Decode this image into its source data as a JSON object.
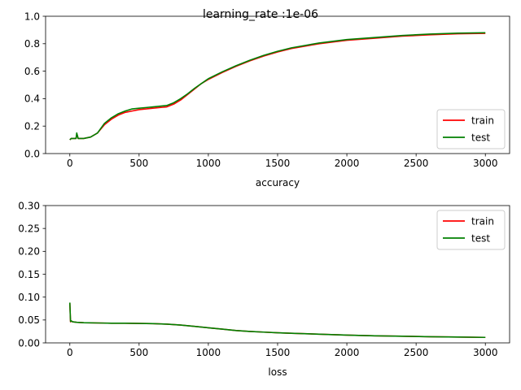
{
  "figure": {
    "suptitle": "learning_rate :1e-06"
  },
  "chart_data": [
    {
      "type": "line",
      "title": "",
      "xlabel": "accuracy",
      "ylabel": "",
      "xlim": [
        -175,
        3175
      ],
      "ylim": [
        0.0,
        1.0
      ],
      "xticks": [
        0,
        500,
        1000,
        1500,
        2000,
        2500,
        3000
      ],
      "yticks": [
        0.0,
        0.2,
        0.4,
        0.6,
        0.8,
        1.0
      ],
      "ytick_labels": [
        "0.0",
        "0.2",
        "0.4",
        "0.6",
        "0.8",
        "1.0"
      ],
      "grid": false,
      "legend_placement": "lower-right",
      "series": [
        {
          "name": "train",
          "color": "#ff0000",
          "x": [
            0,
            10,
            30,
            45,
            50,
            55,
            60,
            80,
            100,
            150,
            200,
            250,
            300,
            350,
            400,
            450,
            500,
            550,
            600,
            650,
            700,
            750,
            800,
            850,
            900,
            950,
            1000,
            1100,
            1200,
            1300,
            1400,
            1500,
            1600,
            1800,
            2000,
            2200,
            2400,
            2600,
            2800,
            3000
          ],
          "y": [
            0.1,
            0.11,
            0.11,
            0.11,
            0.14,
            0.13,
            0.11,
            0.11,
            0.11,
            0.12,
            0.15,
            0.21,
            0.25,
            0.28,
            0.3,
            0.31,
            0.32,
            0.325,
            0.33,
            0.335,
            0.34,
            0.36,
            0.39,
            0.43,
            0.47,
            0.51,
            0.54,
            0.59,
            0.635,
            0.675,
            0.71,
            0.74,
            0.765,
            0.8,
            0.825,
            0.84,
            0.855,
            0.865,
            0.872,
            0.875
          ]
        },
        {
          "name": "test",
          "color": "#008000",
          "x": [
            0,
            10,
            30,
            45,
            50,
            55,
            60,
            80,
            100,
            150,
            200,
            250,
            300,
            350,
            400,
            450,
            500,
            550,
            600,
            650,
            700,
            750,
            800,
            850,
            900,
            950,
            1000,
            1100,
            1200,
            1300,
            1400,
            1500,
            1600,
            1800,
            2000,
            2200,
            2400,
            2600,
            2800,
            3000
          ],
          "y": [
            0.1,
            0.11,
            0.11,
            0.11,
            0.15,
            0.13,
            0.11,
            0.11,
            0.11,
            0.12,
            0.15,
            0.22,
            0.26,
            0.29,
            0.31,
            0.325,
            0.33,
            0.335,
            0.34,
            0.345,
            0.35,
            0.37,
            0.4,
            0.435,
            0.475,
            0.51,
            0.545,
            0.595,
            0.64,
            0.68,
            0.715,
            0.745,
            0.77,
            0.805,
            0.83,
            0.845,
            0.86,
            0.87,
            0.877,
            0.88
          ]
        }
      ]
    },
    {
      "type": "line",
      "title": "",
      "xlabel": "loss",
      "ylabel": "",
      "xlim": [
        -175,
        3175
      ],
      "ylim": [
        0.0,
        0.3
      ],
      "xticks": [
        0,
        500,
        1000,
        1500,
        2000,
        2500,
        3000
      ],
      "yticks": [
        0.0,
        0.05,
        0.1,
        0.15,
        0.2,
        0.25,
        0.3
      ],
      "ytick_labels": [
        "0.00",
        "0.05",
        "0.10",
        "0.15",
        "0.20",
        "0.25",
        "0.30"
      ],
      "grid": false,
      "legend_placement": "upper-right",
      "series": [
        {
          "name": "train",
          "color": "#ff0000",
          "x": [
            0,
            5,
            10,
            20,
            50,
            100,
            200,
            300,
            400,
            500,
            600,
            700,
            800,
            900,
            1000,
            1100,
            1200,
            1300,
            1400,
            1500,
            1600,
            1800,
            2000,
            2200,
            2400,
            2600,
            2800,
            3000
          ],
          "y": [
            0.087,
            0.046,
            0.048,
            0.046,
            0.045,
            0.044,
            0.0435,
            0.043,
            0.043,
            0.0425,
            0.042,
            0.041,
            0.039,
            0.036,
            0.033,
            0.03,
            0.027,
            0.025,
            0.0235,
            0.022,
            0.021,
            0.019,
            0.017,
            0.0155,
            0.0145,
            0.0135,
            0.0128,
            0.012
          ]
        },
        {
          "name": "test",
          "color": "#008000",
          "x": [
            0,
            5,
            10,
            20,
            50,
            100,
            200,
            300,
            400,
            500,
            600,
            700,
            800,
            900,
            1000,
            1100,
            1200,
            1300,
            1400,
            1500,
            1600,
            1800,
            2000,
            2200,
            2400,
            2600,
            2800,
            3000
          ],
          "y": [
            0.088,
            0.047,
            0.048,
            0.046,
            0.045,
            0.044,
            0.0435,
            0.043,
            0.043,
            0.0425,
            0.042,
            0.041,
            0.039,
            0.036,
            0.033,
            0.03,
            0.027,
            0.025,
            0.0235,
            0.022,
            0.021,
            0.019,
            0.017,
            0.0155,
            0.0145,
            0.0135,
            0.0128,
            0.012
          ]
        }
      ]
    }
  ]
}
